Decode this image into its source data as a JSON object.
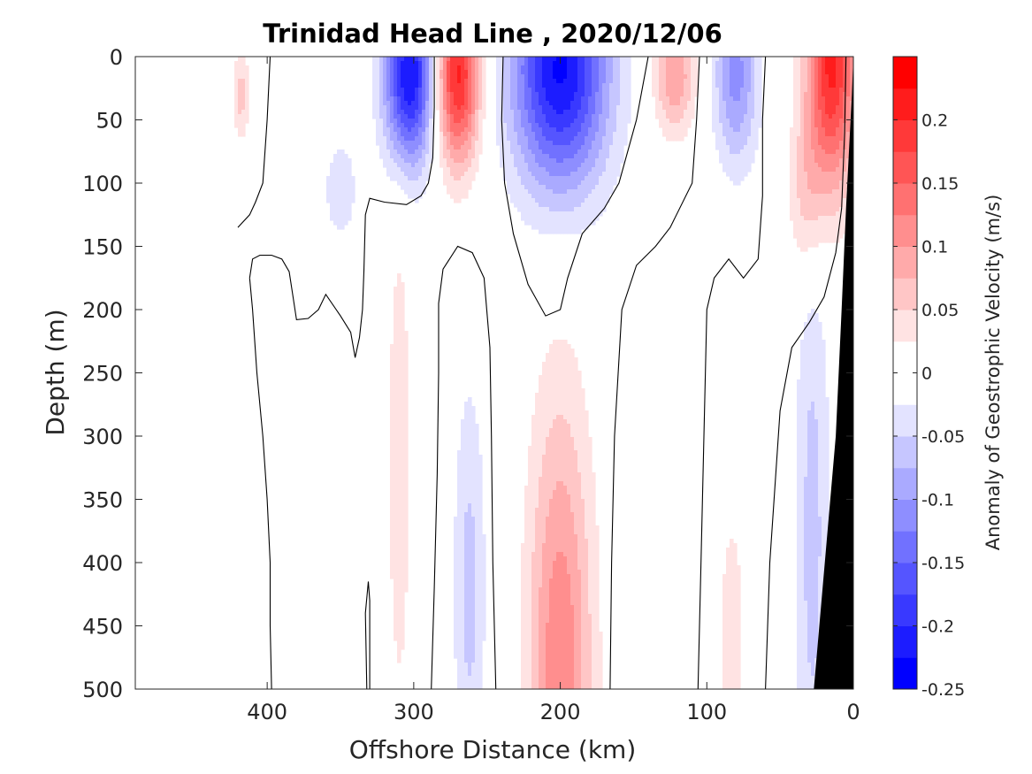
{
  "chart_data": {
    "type": "heatmap",
    "title": "Trinidad Head Line , 2020/12/06",
    "xlabel": "Offshore Distance (km)",
    "ylabel": "Depth (m)",
    "colorbar_label": "Anomaly of Geostrophic Velocity (m/s)",
    "xlim": [
      490,
      0
    ],
    "ylim": [
      0,
      500
    ],
    "x_reversed": true,
    "y_reversed": true,
    "x_ticks": [
      "400",
      "300",
      "200",
      "100",
      "0"
    ],
    "x_tick_values": [
      400,
      300,
      200,
      100,
      0
    ],
    "y_ticks": [
      "0",
      "50",
      "100",
      "150",
      "200",
      "250",
      "300",
      "350",
      "400",
      "450",
      "500"
    ],
    "y_tick_values": [
      0,
      50,
      100,
      150,
      200,
      250,
      300,
      350,
      400,
      450,
      500
    ],
    "colorbar_ticks": [
      "0.2",
      "0.15",
      "0.1",
      "0.05",
      "0",
      "-0.05",
      "-0.1",
      "-0.15",
      "-0.2",
      "-0.25"
    ],
    "colorbar_tick_values": [
      0.2,
      0.15,
      0.1,
      0.05,
      0,
      -0.05,
      -0.1,
      -0.15,
      -0.2,
      -0.25
    ],
    "clim": [
      -0.25,
      0.25
    ],
    "contour_level_step": 0.025,
    "colormap": "blue-white-red",
    "colors": {
      "positive": "#ff0000",
      "negative": "#0000ff",
      "zero": "#ffffff",
      "bathymetry": "#000000"
    },
    "features": [
      {
        "sign": "positive",
        "x": 418,
        "depth": 30,
        "dx": 6,
        "dz": 35,
        "peak": 0.06
      },
      {
        "sign": "negative",
        "x": 350,
        "depth": 105,
        "dx": 13,
        "dz": 45,
        "peak": -0.04
      },
      {
        "sign": "negative",
        "x": 303,
        "depth": 15,
        "dx": 17,
        "dz": 70,
        "peak": -0.23
      },
      {
        "sign": "positive",
        "x": 270,
        "depth": 15,
        "dx": 15,
        "dz": 70,
        "peak": 0.21
      },
      {
        "sign": "negative",
        "x": 200,
        "depth": 10,
        "dx": 33,
        "dz": 95,
        "peak": -0.23
      },
      {
        "sign": "positive",
        "x": 122,
        "depth": 15,
        "dx": 14,
        "dz": 45,
        "peak": 0.1
      },
      {
        "sign": "negative",
        "x": 80,
        "depth": 15,
        "dx": 15,
        "dz": 70,
        "peak": -0.11
      },
      {
        "sign": "positive",
        "x": 15,
        "depth": 5,
        "dx": 17,
        "dz": 100,
        "peak": 0.21
      },
      {
        "sign": "positive",
        "x": 32,
        "depth": 110,
        "dx": 12,
        "dz": 70,
        "peak": 0.06
      },
      {
        "sign": "positive",
        "x": 310,
        "depth": 320,
        "dx": 9,
        "dz": 230,
        "peak": 0.04
      },
      {
        "sign": "negative",
        "x": 262,
        "depth": 420,
        "dx": 11,
        "dz": 160,
        "peak": -0.06
      },
      {
        "sign": "positive",
        "x": 200,
        "depth": 480,
        "dx": 22,
        "dz": 210,
        "peak": 0.12
      },
      {
        "sign": "positive",
        "x": 83,
        "depth": 470,
        "dx": 10,
        "dz": 130,
        "peak": 0.04
      },
      {
        "sign": "negative",
        "x": 28,
        "depth": 380,
        "dx": 12,
        "dz": 260,
        "peak": -0.06
      }
    ],
    "zero_contours": [
      {
        "points": [
          [
            420,
            135
          ],
          [
            412,
            125
          ],
          [
            408,
            115
          ],
          [
            403,
            100
          ],
          [
            400,
            50
          ],
          [
            398,
            0
          ]
        ]
      },
      {
        "points": [
          [
            412,
            175
          ],
          [
            410,
            160
          ],
          [
            405,
            157
          ],
          [
            397,
            157
          ],
          [
            390,
            160
          ],
          [
            385,
            170
          ],
          [
            383,
            185
          ],
          [
            380,
            208
          ],
          [
            372,
            207
          ],
          [
            365,
            200
          ],
          [
            360,
            188
          ],
          [
            350,
            205
          ],
          [
            343,
            218
          ],
          [
            340,
            238
          ],
          [
            337,
            222
          ],
          [
            335,
            200
          ],
          [
            334,
            170
          ],
          [
            333,
            125
          ],
          [
            330,
            112
          ],
          [
            320,
            115
          ],
          [
            305,
            117
          ],
          [
            295,
            110
          ],
          [
            290,
            100
          ],
          [
            287,
            80
          ],
          [
            286,
            40
          ],
          [
            286,
            0
          ]
        ]
      },
      {
        "points": [
          [
            412,
            175
          ],
          [
            410,
            200
          ],
          [
            407,
            250
          ],
          [
            403,
            300
          ],
          [
            400,
            350
          ],
          [
            398,
            400
          ],
          [
            398,
            450
          ],
          [
            397,
            500
          ]
        ]
      },
      {
        "points": [
          [
            332,
            500
          ],
          [
            333,
            440
          ],
          [
            331,
            415
          ],
          [
            330,
            430
          ],
          [
            330,
            500
          ]
        ]
      },
      {
        "points": [
          [
            288,
            500
          ],
          [
            286,
            420
          ],
          [
            284,
            330
          ],
          [
            283,
            250
          ],
          [
            283,
            195
          ],
          [
            280,
            168
          ],
          [
            270,
            150
          ],
          [
            260,
            155
          ],
          [
            252,
            175
          ],
          [
            248,
            230
          ],
          [
            247,
            300
          ],
          [
            246,
            400
          ],
          [
            244,
            500
          ]
        ]
      },
      {
        "points": [
          [
            239,
            0
          ],
          [
            240,
            50
          ],
          [
            238,
            100
          ],
          [
            232,
            140
          ],
          [
            222,
            180
          ],
          [
            210,
            205
          ],
          [
            200,
            200
          ],
          [
            195,
            175
          ],
          [
            185,
            140
          ],
          [
            170,
            120
          ],
          [
            160,
            100
          ],
          [
            148,
            50
          ],
          [
            140,
            0
          ]
        ]
      },
      {
        "points": [
          [
            166,
            500
          ],
          [
            165,
            400
          ],
          [
            163,
            300
          ],
          [
            158,
            200
          ],
          [
            148,
            165
          ],
          [
            135,
            150
          ],
          [
            125,
            135
          ],
          [
            110,
            100
          ],
          [
            107,
            50
          ],
          [
            105,
            0
          ]
        ]
      },
      {
        "points": [
          [
            106,
            500
          ],
          [
            104,
            400
          ],
          [
            102,
            300
          ],
          [
            100,
            200
          ],
          [
            95,
            175
          ],
          [
            85,
            160
          ],
          [
            75,
            175
          ],
          [
            65,
            160
          ],
          [
            62,
            110
          ],
          [
            62,
            50
          ],
          [
            60,
            0
          ]
        ]
      },
      {
        "points": [
          [
            60,
            500
          ],
          [
            57,
            400
          ],
          [
            50,
            280
          ],
          [
            42,
            230
          ],
          [
            30,
            210
          ],
          [
            20,
            190
          ],
          [
            12,
            155
          ],
          [
            8,
            120
          ],
          [
            6,
            60
          ],
          [
            5,
            0
          ]
        ]
      }
    ],
    "bathymetry": {
      "points": [
        [
          0,
          0
        ],
        [
          0,
          500
        ],
        [
          27,
          500
        ],
        [
          12,
          300
        ],
        [
          8,
          200
        ],
        [
          5,
          120
        ],
        [
          1,
          30
        ]
      ]
    }
  }
}
